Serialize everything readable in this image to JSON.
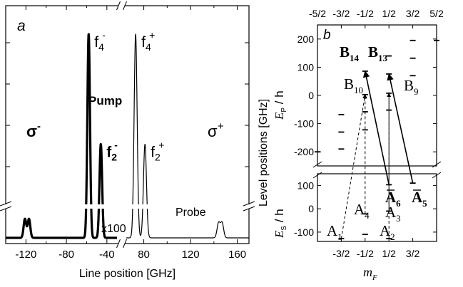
{
  "chart_data": [
    {
      "panel": "a",
      "type": "line",
      "xlabel": "Line position [GHz]",
      "x_axis": "broken",
      "x_segments": [
        {
          "range": [
            -140,
            -30
          ],
          "ticks": [
            -120,
            -80,
            -40
          ]
        },
        {
          "range": [
            65,
            170
          ],
          "ticks": [
            80,
            120,
            160
          ]
        }
      ],
      "y_axis": "broken",
      "y_break_note": "lower part magnified x100",
      "y_units": "arb. units",
      "peak_width_ghz": 1.3,
      "series": [
        {
          "name": "",
          "peaks": [
            {
              "x": -58,
              "y": 1.0,
              "label_main": "f",
              "label_sup": "-",
              "label_sub": "4",
              "label_style": "gray"
            },
            {
              "x": -46,
              "y": 0.46,
              "label_main": "f",
              "label_sup": "-",
              "label_sub": "2",
              "label_style": "bold"
            },
            {
              "x": 73,
              "y": 1.0,
              "label_main": "f",
              "label_sup": "+",
              "label_sub": "4",
              "label_style": "normal"
            },
            {
              "x": 81,
              "y": 0.46,
              "label_main": "f",
              "label_sup": "+",
              "label_sub": "2",
              "label_style": "normal"
            }
          ],
          "probe_peaks": [
            {
              "x": -121,
              "y": 0.7
            },
            {
              "x": -117,
              "y": 0.7
            },
            {
              "x": 144,
              "y": 0.55
            },
            {
              "x": 147,
              "y": 0.55
            }
          ]
        }
      ],
      "annotations": [
        {
          "text": "a",
          "style": "italic"
        },
        {
          "text": "Pump",
          "style": "bold"
        },
        {
          "text": "x100",
          "style": "normal"
        },
        {
          "text": "Probe",
          "style": "normal"
        }
      ],
      "polarization_labels": [
        {
          "main": "σ",
          "sup": "-",
          "style": "bold"
        },
        {
          "main": "σ",
          "sup": "+",
          "style": "normal"
        }
      ]
    },
    {
      "panel": "b",
      "type": "scatter",
      "panel_label": "b",
      "ylabel": "Level positions [GHz]",
      "xlabel_main": "m",
      "xlabel_sub": "F",
      "top_ticks": [
        "-5/2",
        "-3/2",
        "-1/2",
        "1/2",
        "3/2",
        "5/2"
      ],
      "bottom_ticks": [
        "-3/2",
        "-1/2",
        "1/2",
        "3/2"
      ],
      "upper": {
        "ylabel_main": "E",
        "ylabel_sub": "P",
        "ylabel_tail": " / h",
        "ylim": [
          -250,
          250
        ],
        "yticks": [
          -200,
          -100,
          0,
          100,
          200
        ],
        "levels": [
          {
            "mF": -2.5,
            "E": -200
          },
          {
            "mF": -1.5,
            "E": -190
          },
          {
            "mF": -1.5,
            "E": -130
          },
          {
            "mF": -1.5,
            "E": -68
          },
          {
            "mF": -0.5,
            "E": -122
          },
          {
            "mF": -0.5,
            "E": -58
          },
          {
            "mF": -0.5,
            "E": 3
          },
          {
            "mF": -0.5,
            "E": 86
          },
          {
            "mF": 0.5,
            "E": -52
          },
          {
            "mF": 0.5,
            "E": 8
          },
          {
            "mF": 0.5,
            "E": 76
          },
          {
            "mF": 0.5,
            "E": 140
          },
          {
            "mF": 1.5,
            "E": 70
          },
          {
            "mF": 1.5,
            "E": 132
          },
          {
            "mF": 1.5,
            "E": 195
          },
          {
            "mF": 2.5,
            "E": 195
          }
        ]
      },
      "lower": {
        "ylabel_main": "E",
        "ylabel_sub": "S",
        "ylabel_tail": " / h",
        "ylim": [
          -140,
          150
        ],
        "yticks": [
          -100,
          0,
          100
        ],
        "levels": [
          {
            "mF": -1.5,
            "E": -128
          },
          {
            "mF": -0.5,
            "E": -110
          },
          {
            "mF": -0.5,
            "E": -22
          },
          {
            "mF": 0.5,
            "E": -128
          },
          {
            "mF": 0.5,
            "E": -10
          },
          {
            "mF": 0.5,
            "E": 103
          },
          {
            "mF": 1.5,
            "E": 110
          }
        ]
      },
      "state_labels": [
        {
          "letter": "B",
          "sub": "14",
          "bold": true
        },
        {
          "letter": "B",
          "sub": "13",
          "bold": true
        },
        {
          "letter": "B",
          "sub": "10",
          "bold": false
        },
        {
          "letter": "B",
          "sub": "9",
          "bold": false
        },
        {
          "letter": "A",
          "sub": "6",
          "bold": true
        },
        {
          "letter": "A",
          "sub": "5",
          "bold": true
        },
        {
          "letter": "A",
          "sub": "4",
          "bold": false
        },
        {
          "letter": "A",
          "sub": "3",
          "bold": false
        },
        {
          "letter": "A",
          "sub": "2",
          "bold": false
        },
        {
          "letter": "A",
          "sub": "1",
          "bold": false
        }
      ],
      "transitions": [
        {
          "from": "A6",
          "to": "B14",
          "kind": "pump",
          "style": "solid"
        },
        {
          "from": "A5",
          "to": "B13",
          "kind": "pump",
          "style": "solid"
        },
        {
          "from": "A1",
          "to": "B10",
          "kind": "probe",
          "style": "dashed"
        },
        {
          "from": "A4",
          "to": "B10",
          "kind": "probe",
          "style": "dashed"
        },
        {
          "from": "A3",
          "to": "B9",
          "kind": "probe",
          "style": "dashed"
        },
        {
          "from": "A2",
          "to": "B9",
          "kind": "probe",
          "style": "dashed"
        }
      ]
    }
  ]
}
